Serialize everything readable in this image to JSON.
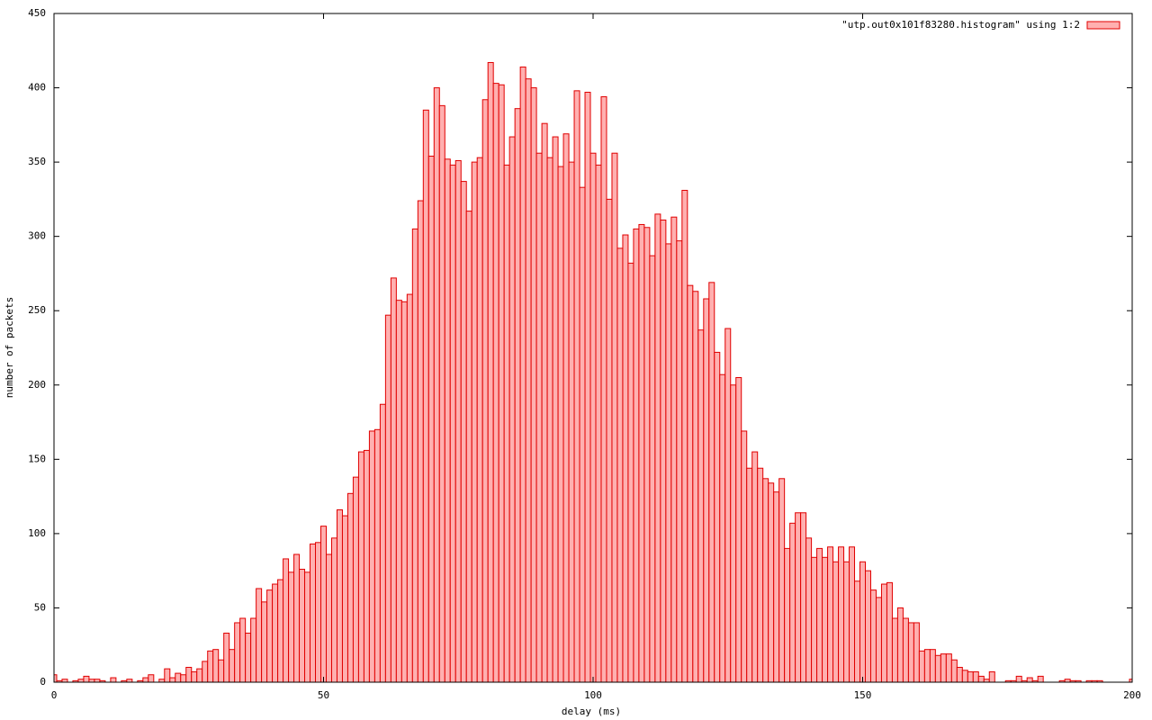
{
  "chart_data": {
    "type": "histogram",
    "xlabel": "delay (ms)",
    "ylabel": "number of packets",
    "xlim": [
      0,
      200
    ],
    "ylim": [
      0,
      450
    ],
    "xticks": [
      0,
      50,
      100,
      150,
      200
    ],
    "yticks": [
      0,
      50,
      100,
      150,
      200,
      250,
      300,
      350,
      400,
      450
    ],
    "grid": false,
    "legend": "upper right",
    "x": [
      0,
      1,
      2,
      3,
      4,
      5,
      6,
      7,
      8,
      9,
      10,
      11,
      12,
      13,
      14,
      15,
      16,
      17,
      18,
      19,
      20,
      21,
      22,
      23,
      24,
      25,
      26,
      27,
      28,
      29,
      30,
      31,
      32,
      33,
      34,
      35,
      36,
      37,
      38,
      39,
      40,
      41,
      42,
      43,
      44,
      45,
      46,
      47,
      48,
      49,
      50,
      51,
      52,
      53,
      54,
      55,
      56,
      57,
      58,
      59,
      60,
      61,
      62,
      63,
      64,
      65,
      66,
      67,
      68,
      69,
      70,
      71,
      72,
      73,
      74,
      75,
      76,
      77,
      78,
      79,
      80,
      81,
      82,
      83,
      84,
      85,
      86,
      87,
      88,
      89,
      90,
      91,
      92,
      93,
      94,
      95,
      96,
      97,
      98,
      99,
      100,
      101,
      102,
      103,
      104,
      105,
      106,
      107,
      108,
      109,
      110,
      111,
      112,
      113,
      114,
      115,
      116,
      117,
      118,
      119,
      120,
      121,
      122,
      123,
      124,
      125,
      126,
      127,
      128,
      129,
      130,
      131,
      132,
      133,
      134,
      135,
      136,
      137,
      138,
      139,
      140,
      141,
      142,
      143,
      144,
      145,
      146,
      147,
      148,
      149,
      150,
      151,
      152,
      153,
      154,
      155,
      156,
      157,
      158,
      159,
      160,
      161,
      162,
      163,
      164,
      165,
      166,
      167,
      168,
      169,
      170,
      171,
      172,
      173,
      174,
      175,
      176,
      177,
      178,
      179,
      180,
      181,
      182,
      183,
      184,
      185,
      186,
      187,
      188,
      189,
      190,
      191,
      192,
      193,
      194,
      195,
      196,
      197,
      198,
      199,
      200
    ],
    "series": [
      {
        "name": "\"utp.out0x101f83280.histogram\" using 1:2",
        "color": "#ffb0b0",
        "edgecolor": "#e00000",
        "values": [
          5,
          1,
          2,
          0,
          1,
          2,
          4,
          2,
          2,
          1,
          0,
          3,
          0,
          1,
          2,
          0,
          1,
          3,
          5,
          0,
          2,
          9,
          3,
          6,
          5,
          10,
          7,
          9,
          14,
          21,
          22,
          15,
          33,
          22,
          40,
          43,
          33,
          43,
          63,
          54,
          62,
          66,
          69,
          83,
          74,
          86,
          76,
          74,
          93,
          94,
          105,
          86,
          97,
          116,
          112,
          127,
          138,
          155,
          156,
          169,
          170,
          187,
          247,
          272,
          257,
          256,
          261,
          305,
          324,
          385,
          354,
          400,
          388,
          352,
          348,
          351,
          337,
          317,
          350,
          353,
          392,
          417,
          403,
          402,
          348,
          367,
          386,
          414,
          406,
          400,
          356,
          376,
          353,
          367,
          347,
          369,
          350,
          398,
          333,
          397,
          356,
          348,
          394,
          325,
          356,
          292,
          301,
          282,
          305,
          308,
          306,
          287,
          315,
          311,
          295,
          313,
          297,
          331,
          267,
          263,
          237,
          258,
          269,
          222,
          207,
          238,
          200,
          205,
          169,
          144,
          155,
          144,
          137,
          134,
          128,
          137,
          90,
          107,
          114,
          114,
          97,
          84,
          90,
          84,
          91,
          81,
          91,
          81,
          91,
          68,
          81,
          75,
          62,
          57,
          66,
          67,
          43,
          50,
          43,
          40,
          40,
          21,
          22,
          22,
          18,
          19,
          19,
          15,
          10,
          8,
          7,
          7,
          4,
          2,
          7,
          0,
          0,
          1,
          1,
          4,
          1,
          3,
          1,
          4,
          0,
          0,
          0,
          1,
          2,
          1,
          1,
          0,
          1,
          1,
          1,
          0,
          0,
          0,
          0,
          0,
          2
        ]
      }
    ]
  }
}
